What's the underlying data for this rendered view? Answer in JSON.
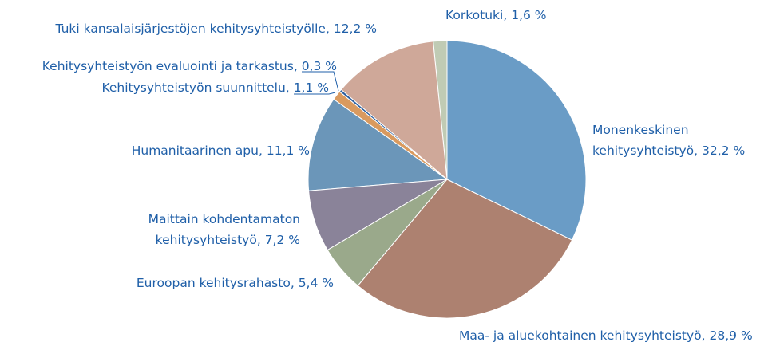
{
  "chart_data": {
    "type": "pie",
    "categories": [
      "Monenkeskinen kehitysyhteistyö,",
      "Maa- ja aluekohtainen kehitysyhteistyö,",
      "Euroopan kehitysrahasto,",
      "Maittain kohdentamaton kehitysyhteistyö,",
      "Humanitaarinen apu,",
      "Kehitysyhteistyön suunnittelu,",
      "Kehitysyhteistyön evaluointi ja tarkastus,",
      "Tuki kansalaisjärjestöjen kehitysyhteistyölle,",
      "Korkotuki,"
    ],
    "values": [
      32.2,
      28.9,
      5.4,
      7.2,
      11.1,
      1.1,
      0.3,
      12.2,
      1.6
    ],
    "value_labels": [
      "32,2 %",
      "28,9 %",
      "5,4 %",
      "7,2 %",
      "11,1 %",
      "1,1 %",
      "0,3 %",
      "12,2 %",
      "1,6 %"
    ],
    "colors": [
      "#6a9cc6",
      "#ad8170",
      "#9aa98b",
      "#8a8399",
      "#6b96b9",
      "#d99a5f",
      "#2b5f9f",
      "#cfa899",
      "#c0cbb4"
    ]
  }
}
